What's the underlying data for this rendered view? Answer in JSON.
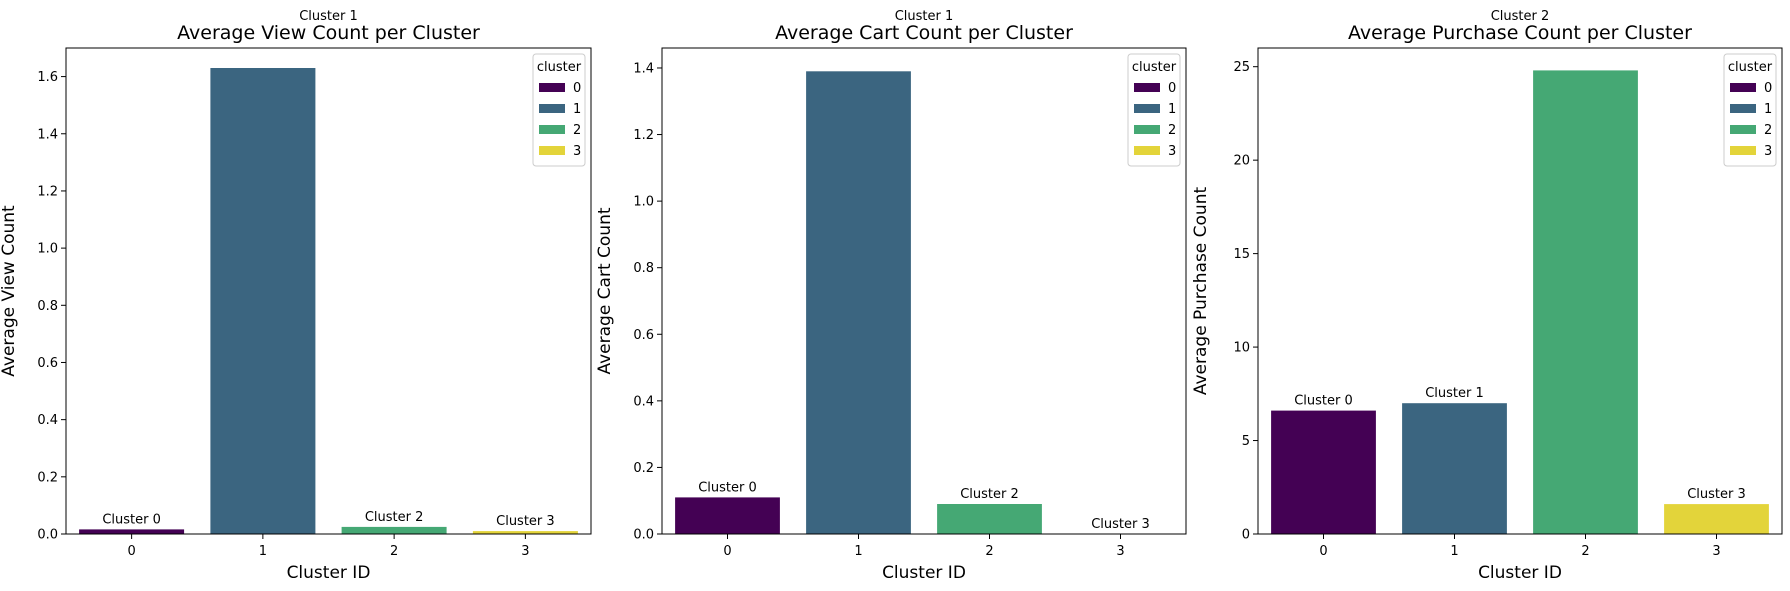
{
  "chart_data": [
    {
      "type": "bar",
      "title": "Average View Count per Cluster",
      "top_annotation": "Cluster 1",
      "xlabel": "Cluster ID",
      "ylabel": "Average View Count",
      "categories": [
        "0",
        "1",
        "2",
        "3"
      ],
      "values": [
        0.016,
        1.63,
        0.025,
        0.01
      ],
      "bar_labels": [
        "Cluster 0",
        "",
        "Cluster 2",
        "Cluster 3"
      ],
      "ylim": [
        0,
        1.7
      ],
      "yticks": [
        0.0,
        0.2,
        0.4,
        0.6,
        0.8,
        1.0,
        1.2,
        1.4,
        1.6
      ],
      "ytick_labels": [
        "0.0",
        "0.2",
        "0.4",
        "0.6",
        "0.8",
        "1.0",
        "1.2",
        "1.4",
        "1.6"
      ],
      "legend": {
        "title": "cluster",
        "entries": [
          "0",
          "1",
          "2",
          "3"
        ],
        "placement": "top-right"
      },
      "grid": false
    },
    {
      "type": "bar",
      "title": "Average Cart Count per Cluster",
      "top_annotation": "Cluster 1",
      "xlabel": "Cluster ID",
      "ylabel": "Average Cart Count",
      "categories": [
        "0",
        "1",
        "2",
        "3"
      ],
      "values": [
        0.11,
        1.39,
        0.09,
        0.0
      ],
      "bar_labels": [
        "Cluster 0",
        "",
        "Cluster 2",
        "Cluster 3"
      ],
      "ylim": [
        0,
        1.46
      ],
      "yticks": [
        0.0,
        0.2,
        0.4,
        0.6,
        0.8,
        1.0,
        1.2,
        1.4
      ],
      "ytick_labels": [
        "0.0",
        "0.2",
        "0.4",
        "0.6",
        "0.8",
        "1.0",
        "1.2",
        "1.4"
      ],
      "legend": {
        "title": "cluster",
        "entries": [
          "0",
          "1",
          "2",
          "3"
        ],
        "placement": "top-right"
      },
      "grid": false
    },
    {
      "type": "bar",
      "title": "Average Purchase Count per Cluster",
      "top_annotation": "Cluster 2",
      "xlabel": "Cluster ID",
      "ylabel": "Average Purchase Count",
      "categories": [
        "0",
        "1",
        "2",
        "3"
      ],
      "values": [
        6.6,
        7.0,
        24.8,
        1.6
      ],
      "bar_labels": [
        "Cluster 0",
        "Cluster 1",
        "",
        "Cluster 3"
      ],
      "ylim": [
        0,
        26
      ],
      "yticks": [
        0,
        5,
        10,
        15,
        20,
        25
      ],
      "ytick_labels": [
        "0",
        "5",
        "10",
        "15",
        "20",
        "25"
      ],
      "legend": {
        "title": "cluster",
        "entries": [
          "0",
          "1",
          "2",
          "3"
        ],
        "placement": "top-right"
      },
      "grid": false
    }
  ],
  "colors": {
    "cluster_0": "#440154",
    "cluster_1": "#3b6580",
    "cluster_2": "#45a874",
    "cluster_3": "#e3d43a",
    "axis": "#000000",
    "background": "#ffffff"
  }
}
